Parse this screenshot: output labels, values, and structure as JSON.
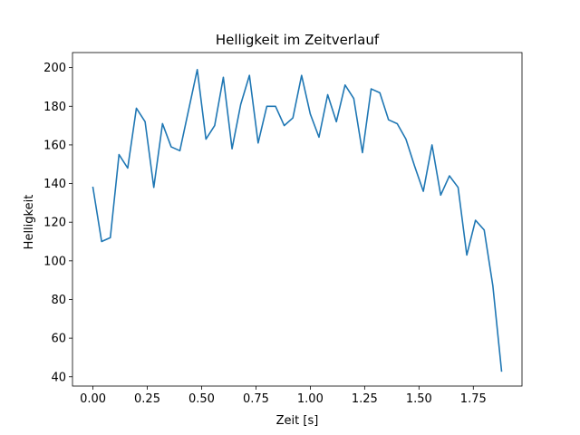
{
  "chart_data": {
    "type": "line",
    "title": "Helligkeit im Zeitverlauf",
    "xlabel": "Zeit [s]",
    "ylabel": "Helligkeit",
    "xlim": [
      -0.094,
      1.974
    ],
    "ylim": [
      35.2,
      207.8
    ],
    "xticks": [
      0.0,
      0.25,
      0.5,
      0.75,
      1.0,
      1.25,
      1.5,
      1.75
    ],
    "xtick_labels": [
      "0.00",
      "0.25",
      "0.50",
      "0.75",
      "1.00",
      "1.25",
      "1.50",
      "1.75"
    ],
    "yticks": [
      40,
      60,
      80,
      100,
      120,
      140,
      160,
      180,
      200
    ],
    "ytick_labels": [
      "40",
      "60",
      "80",
      "100",
      "120",
      "140",
      "160",
      "180",
      "200"
    ],
    "grid": false,
    "series": [
      {
        "color": "#1f77b4",
        "x": [
          0.0,
          0.04,
          0.08,
          0.12,
          0.16,
          0.2,
          0.24,
          0.28,
          0.32,
          0.36,
          0.4,
          0.44,
          0.48,
          0.52,
          0.56,
          0.6,
          0.64,
          0.68,
          0.72,
          0.76,
          0.8,
          0.84,
          0.88,
          0.92,
          0.96,
          1.0,
          1.04,
          1.08,
          1.12,
          1.16,
          1.2,
          1.24,
          1.28,
          1.32,
          1.36,
          1.4,
          1.44,
          1.48,
          1.52,
          1.56,
          1.6,
          1.64,
          1.68,
          1.72,
          1.76,
          1.8,
          1.84,
          1.88
        ],
        "y": [
          138,
          110,
          112,
          155,
          148,
          179,
          172,
          138,
          171,
          159,
          157,
          178,
          199,
          163,
          170,
          195,
          158,
          181,
          196,
          161,
          180,
          180,
          170,
          174,
          196,
          176,
          164,
          186,
          172,
          191,
          184,
          156,
          189,
          187,
          173,
          171,
          163,
          149,
          136,
          160,
          134,
          144,
          138,
          103,
          121,
          116,
          87,
          43
        ]
      }
    ]
  }
}
